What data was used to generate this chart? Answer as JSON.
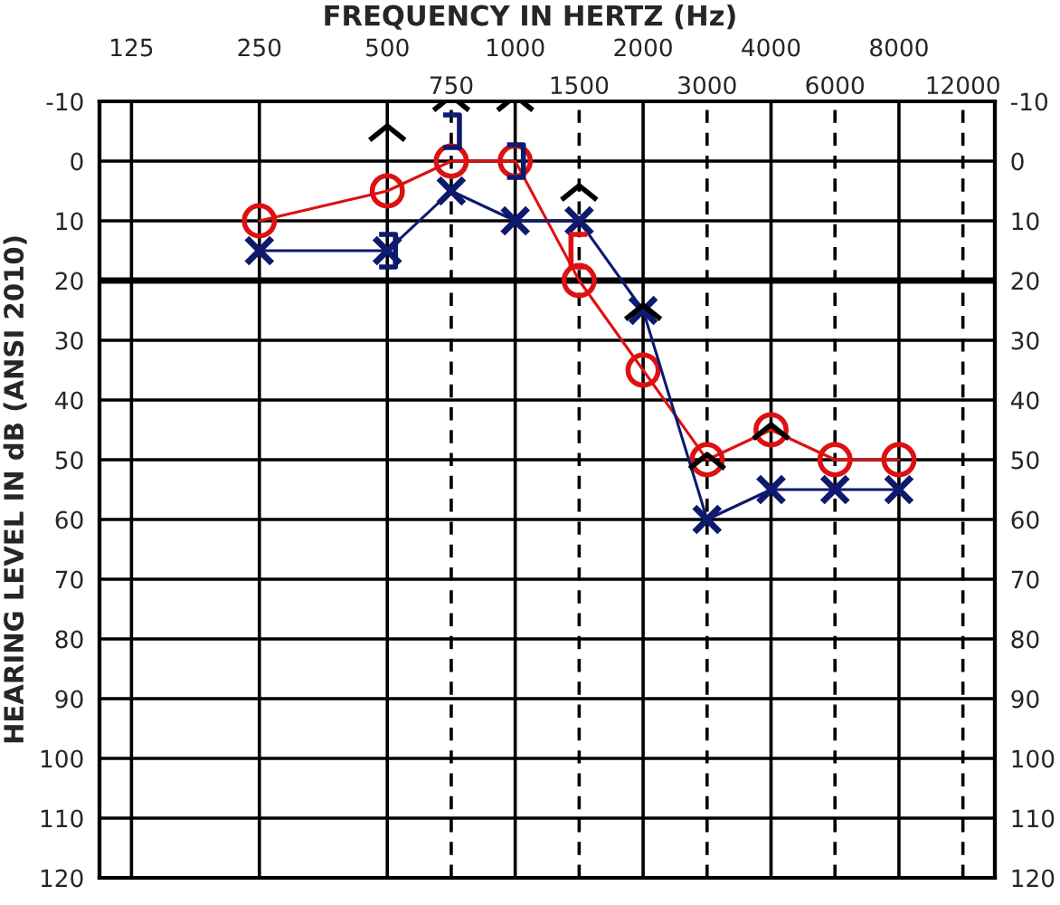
{
  "chart_data": {
    "type": "line",
    "title": "FREQUENCY IN HERTZ (Hz)",
    "ylabel": "HEARING LEVEL IN dB (ANSI 2010)",
    "categories": [
      "125",
      null,
      "250",
      null,
      "500",
      "750",
      "1000",
      "1500",
      "2000",
      "3000",
      "4000",
      "6000",
      "8000",
      "12000"
    ],
    "ylim": [
      120,
      -10
    ],
    "yticks": [
      -10,
      0,
      10,
      20,
      30,
      40,
      50,
      60,
      70,
      80,
      90,
      100,
      110,
      120
    ],
    "y2lim": [
      120,
      -10
    ],
    "y2ticks": [
      -10,
      0,
      10,
      20,
      30,
      40,
      50,
      60,
      70,
      80,
      90,
      100,
      110,
      120
    ],
    "grid": true,
    "ref_lines": [
      {
        "axis": "y",
        "value": 20,
        "color": "#000000",
        "line_style": "solid"
      }
    ],
    "series": [
      {
        "color": "#dd1111",
        "marker": "circle",
        "line_style": "solid",
        "values": [
          null,
          null,
          10,
          null,
          5,
          0,
          0,
          20,
          35,
          50,
          45,
          50,
          50,
          null
        ]
      },
      {
        "color": "#0d1a6e",
        "marker": "cross",
        "line_style": "solid",
        "values": [
          null,
          null,
          15,
          null,
          15,
          5,
          10,
          10,
          25,
          60,
          55,
          55,
          55,
          null
        ]
      },
      {
        "type": "scatter",
        "color": "#000000",
        "values": [
          null,
          null,
          null,
          null,
          -5,
          -10,
          -10,
          5,
          25,
          50,
          45,
          null,
          null,
          null
        ]
      },
      {
        "type": "scatter",
        "color": "#dd1111",
        "values": [
          null,
          null,
          null,
          null,
          null,
          null,
          null,
          15,
          null,
          null,
          null,
          null,
          null,
          null
        ]
      },
      {
        "type": "scatter",
        "color": "#0d1a6e",
        "values": [
          null,
          null,
          null,
          null,
          15,
          -5,
          0,
          null,
          null,
          null,
          null,
          null,
          null,
          null
        ]
      }
    ]
  }
}
